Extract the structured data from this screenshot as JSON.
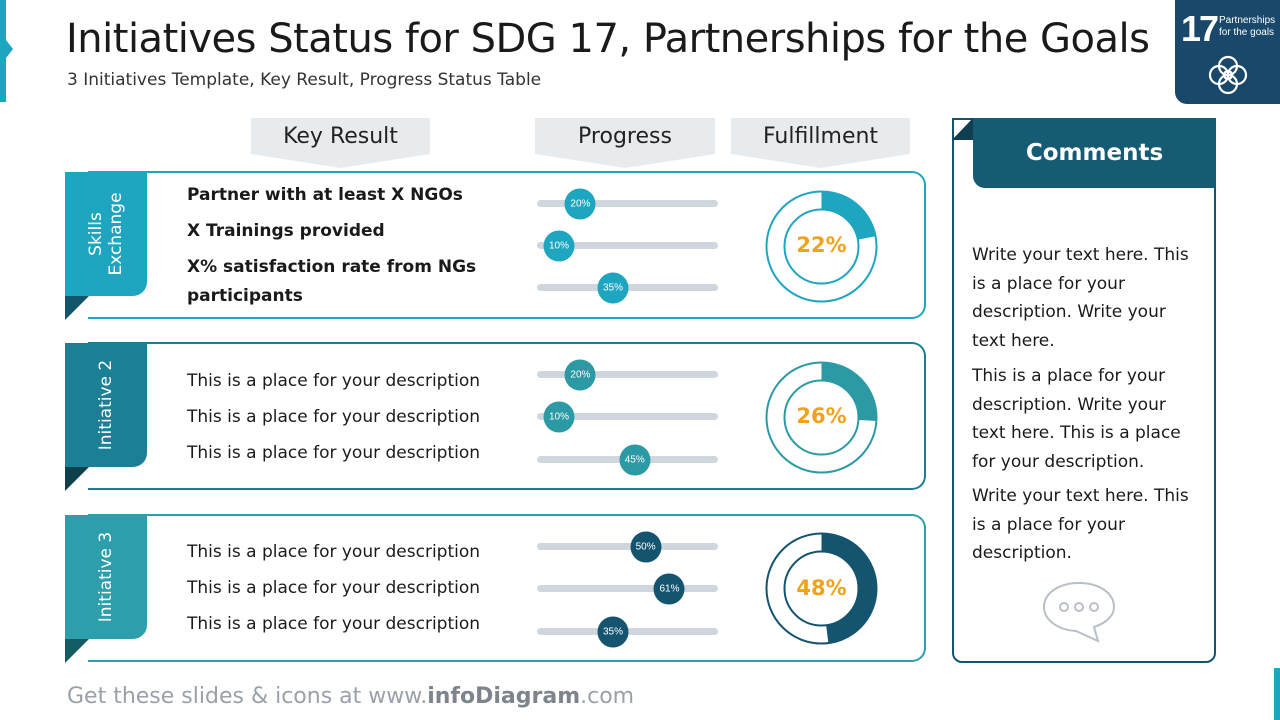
{
  "header": {
    "title": "Initiatives Status for SDG 17, Partnerships for the Goals",
    "subtitle": "3 Initiatives Template, Key Result, Progress Status Table"
  },
  "sdg_badge": {
    "number": "17",
    "label": "Partnerships for the goals",
    "icon": "flower-rings-icon",
    "color": "#19486a"
  },
  "columns": {
    "key_result": "Key Result",
    "progress": "Progress",
    "fulfillment": "Fulfillment"
  },
  "initiatives": [
    {
      "name": "Skills Exchange",
      "name_lines": [
        "Skills",
        "Exchange"
      ],
      "color": "#1ea6c1",
      "fold_color": "#13566b",
      "results": [
        "Partner with at least X NGOs",
        "X Trainings provided",
        "X% satisfaction rate from NGs participants"
      ],
      "results_lines": [
        "Partner with at least X NGOs",
        "X Trainings provided",
        "X% satisfaction rate from NGs",
        "participants"
      ],
      "progress": [
        0.2,
        0.1,
        0.35
      ],
      "progress_labels": [
        "20%",
        "10%",
        "35%"
      ],
      "knob_color": "#1ea6c1",
      "fulfillment": 0.22,
      "fulfillment_label": "22%"
    },
    {
      "name": "Initiative 2",
      "color": "#1b7f95",
      "fold_color": "#0d3f4d",
      "results": [
        "This is a place for your description",
        "This is a place for your description",
        "This is a place for your description"
      ],
      "progress": [
        0.2,
        0.1,
        0.45
      ],
      "progress_labels": [
        "20%",
        "10%",
        "45%"
      ],
      "knob_color": "#2b9aa5",
      "fulfillment": 0.26,
      "fulfillment_label": "26%"
    },
    {
      "name": "Initiative 3",
      "color": "#2d9fac",
      "fold_color": "#155b64",
      "results": [
        "This is a place for your description",
        "This is a place for your description",
        "This is a place for your description"
      ],
      "progress": [
        0.5,
        0.61,
        0.35
      ],
      "progress_labels": [
        "50%",
        "61%",
        "35%"
      ],
      "knob_color": "#15546f",
      "fulfillment": 0.48,
      "fulfillment_label": "48%"
    }
  ],
  "comments": {
    "title": "Comments",
    "paragraphs": [
      "Write your text here. This is a place for your description. Write your text here.",
      "This is a place for your description. Write your text here. This is a place for your description.",
      "Write your text here. This is a place for your description."
    ],
    "icon": "speech-bubble-icon"
  },
  "footer": {
    "prefix": "Get these slides & icons at www.",
    "brand": "infoDiagram",
    "suffix": ".com"
  },
  "colors": {
    "accent": "#1ea6c1",
    "dark": "#15546f",
    "percent": "#f0a21b"
  }
}
